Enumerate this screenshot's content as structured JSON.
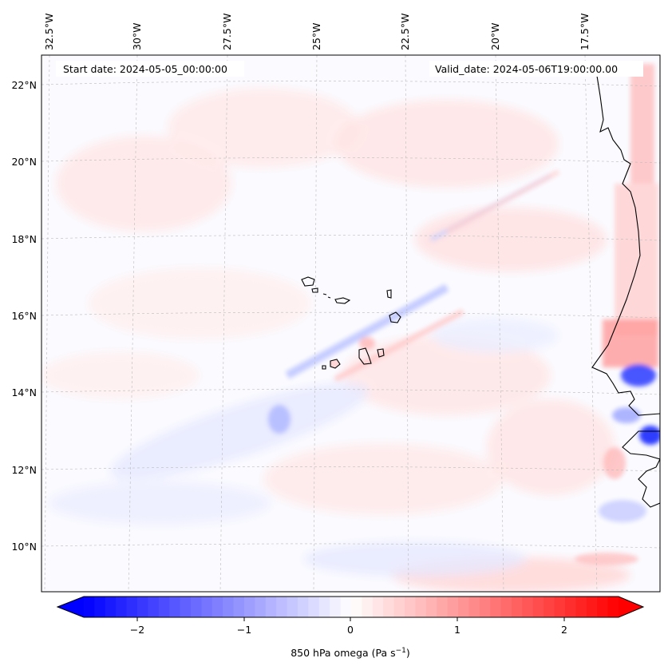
{
  "header": {
    "start_date": "Start date: 2024-05-05_00:00:00",
    "valid_date": "Valid_date: 2024-05-06T19:00:00.00"
  },
  "map": {
    "lon_labels": [
      "32.5°W",
      "30°W",
      "27.5°W",
      "25°W",
      "22.5°W",
      "20°W",
      "17.5°W"
    ],
    "lat_labels": [
      "22°N",
      "20°N",
      "18°N",
      "16°N",
      "14°N",
      "12°N",
      "10°N"
    ],
    "field": "850 hPa omega"
  },
  "colorbar": {
    "label_prefix": "850 hPa omega (Pa s",
    "label_exp": "−1",
    "label_suffix": ")",
    "ticks": [
      "−2",
      "−1",
      "0",
      "1",
      "2"
    ],
    "range": [
      -2.6,
      2.6
    ],
    "colors": {
      "negative": "#0000ff",
      "zero": "#ffffff",
      "positive": "#ff0000"
    }
  }
}
